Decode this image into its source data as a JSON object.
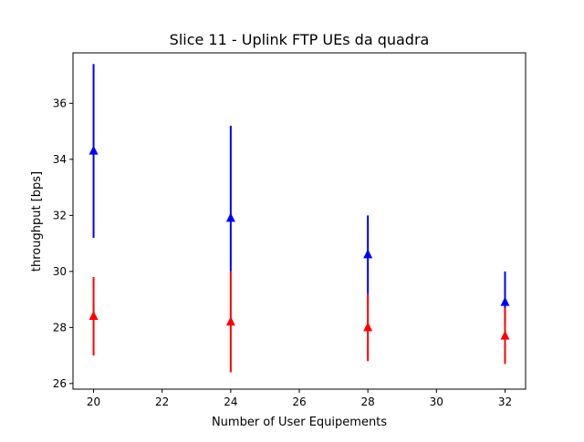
{
  "chart_data": {
    "type": "scatter",
    "title": "Slice 11 - Uplink FTP UEs da quadra",
    "xlabel": "Number of User Equipements",
    "ylabel": "throughput [bps]",
    "xlim": [
      19.4,
      32.6
    ],
    "ylim": [
      25.8,
      37.8
    ],
    "x_ticks": [
      20,
      22,
      24,
      26,
      28,
      30,
      32
    ],
    "y_ticks": [
      26,
      28,
      30,
      32,
      34,
      36
    ],
    "grid": false,
    "legend": "none",
    "marker": "triangle-up",
    "series": [
      {
        "color": "#0000ff",
        "x": [
          20,
          24,
          28,
          32
        ],
        "values": [
          34.3,
          31.9,
          30.6,
          28.9
        ],
        "err_low": [
          31.2,
          30.0,
          29.2,
          28.1
        ],
        "err_high": [
          37.4,
          35.2,
          32.0,
          30.0
        ]
      },
      {
        "color": "#ff0000",
        "x": [
          20,
          24,
          28,
          32
        ],
        "values": [
          28.4,
          28.2,
          28.0,
          27.7
        ],
        "err_low": [
          27.0,
          26.4,
          26.8,
          26.7
        ],
        "err_high": [
          29.8,
          30.0,
          29.2,
          28.7
        ]
      }
    ]
  }
}
